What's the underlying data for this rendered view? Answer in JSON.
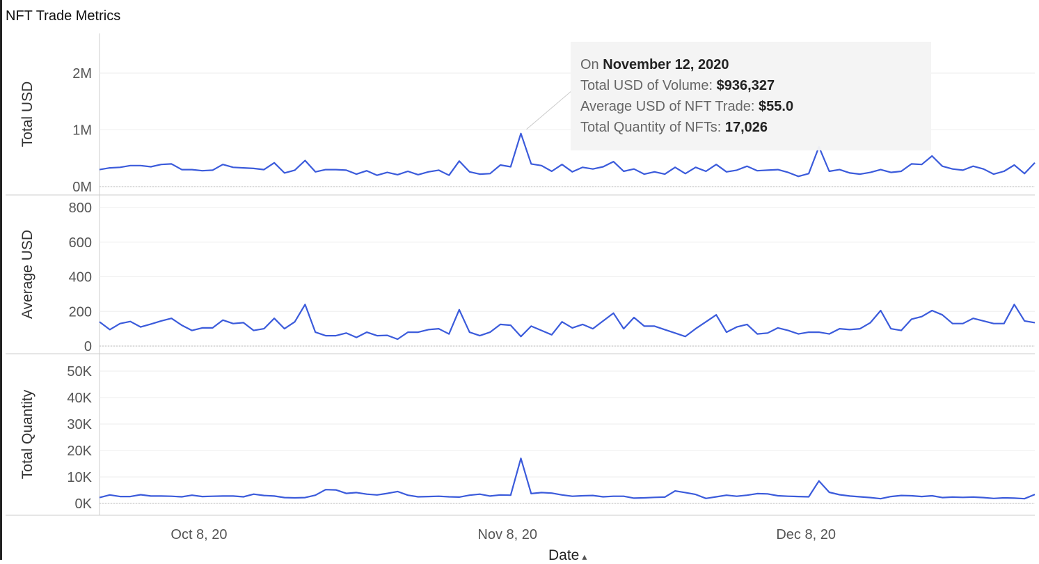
{
  "title": "NFT Trade Metrics",
  "x_axis_title": "Date",
  "x_axis_icon": "sort-icon",
  "colors": {
    "line": "#3b5bdb",
    "grid": "#eeeeee",
    "divider": "#cccccc",
    "tooltip_bg": "#f4f4f4"
  },
  "tooltip": {
    "prefix": "On",
    "date": "November 12, 2020",
    "rows": [
      {
        "label": "Total USD of Volume:",
        "value": "$936,327"
      },
      {
        "label": "Average USD of NFT Trade:",
        "value": "$55.0"
      },
      {
        "label": "Total Quantity of NFTs:",
        "value": "17,026"
      }
    ]
  },
  "chart_data": {
    "type": "line",
    "x": {
      "start": "2020-09-28",
      "end": "2020-12-31",
      "ticks": [
        "Oct 8, 20",
        "Nov 8, 20",
        "Dec 8, 20"
      ],
      "tick_dates": [
        "2020-10-08",
        "2020-11-08",
        "2020-12-08"
      ]
    },
    "grid": true,
    "panels": [
      {
        "name": "Total USD",
        "ylabel": "Total USD",
        "ylim": [
          0,
          2500000
        ],
        "yticks": [
          0,
          1000000,
          2000000
        ],
        "ytick_labels": [
          "0M",
          "1M",
          "2M"
        ],
        "values": [
          300000,
          330000,
          340000,
          370000,
          370000,
          350000,
          390000,
          400000,
          300000,
          300000,
          280000,
          290000,
          390000,
          340000,
          330000,
          320000,
          300000,
          420000,
          240000,
          290000,
          460000,
          260000,
          300000,
          300000,
          290000,
          220000,
          280000,
          200000,
          250000,
          210000,
          270000,
          210000,
          260000,
          290000,
          200000,
          450000,
          260000,
          220000,
          230000,
          380000,
          350000,
          936327,
          400000,
          370000,
          270000,
          390000,
          260000,
          340000,
          310000,
          350000,
          440000,
          270000,
          310000,
          220000,
          260000,
          220000,
          340000,
          230000,
          340000,
          270000,
          390000,
          260000,
          290000,
          360000,
          280000,
          290000,
          300000,
          250000,
          180000,
          230000,
          700000,
          270000,
          300000,
          240000,
          220000,
          250000,
          300000,
          250000,
          270000,
          400000,
          390000,
          540000,
          360000,
          310000,
          290000,
          360000,
          310000,
          220000,
          270000,
          380000,
          230000,
          420000
        ]
      },
      {
        "name": "Average USD",
        "ylabel": "Average USD",
        "ylim": [
          0,
          800
        ],
        "yticks": [
          0,
          200,
          400,
          600,
          800
        ],
        "ytick_labels": [
          "0",
          "200",
          "400",
          "600",
          "800"
        ],
        "values": [
          140,
          95,
          130,
          142,
          110,
          127,
          145,
          160,
          120,
          90,
          105,
          105,
          150,
          130,
          135,
          90,
          100,
          160,
          100,
          140,
          240,
          80,
          60,
          60,
          75,
          50,
          80,
          60,
          62,
          40,
          80,
          80,
          95,
          100,
          70,
          210,
          80,
          60,
          80,
          125,
          120,
          55,
          115,
          90,
          65,
          140,
          105,
          125,
          100,
          145,
          190,
          100,
          165,
          115,
          115,
          95,
          75,
          55,
          100,
          140,
          180,
          80,
          110,
          125,
          70,
          75,
          105,
          90,
          70,
          80,
          80,
          70,
          100,
          95,
          100,
          135,
          205,
          100,
          90,
          155,
          170,
          205,
          180,
          130,
          130,
          160,
          145,
          130,
          130,
          240,
          145,
          135
        ]
      },
      {
        "name": "Total Quantity",
        "ylabel": "Total Quantity",
        "ylim": [
          0,
          55000
        ],
        "yticks": [
          0,
          10000,
          20000,
          30000,
          40000,
          50000
        ],
        "ytick_labels": [
          "0K",
          "10K",
          "20K",
          "30K",
          "40K",
          "50K"
        ],
        "values": [
          2200,
          3200,
          2600,
          2600,
          3300,
          2800,
          2800,
          2700,
          2500,
          3100,
          2600,
          2700,
          2800,
          2800,
          2500,
          3500,
          3000,
          2800,
          2200,
          2100,
          2200,
          3100,
          5200,
          5100,
          3800,
          4100,
          3500,
          3200,
          3800,
          4500,
          3100,
          2500,
          2600,
          2700,
          2500,
          2400,
          3100,
          3500,
          2800,
          3200,
          3100,
          17026,
          3700,
          4100,
          3900,
          3200,
          2700,
          2900,
          3000,
          2500,
          2700,
          2700,
          2000,
          2100,
          2300,
          2400,
          4700,
          4100,
          3400,
          1900,
          2500,
          3100,
          2700,
          3100,
          3700,
          3600,
          2900,
          2700,
          2600,
          2500,
          8500,
          4200,
          3300,
          2800,
          2500,
          2200,
          1800,
          2600,
          3000,
          2900,
          2600,
          2900,
          2200,
          2400,
          2300,
          2400,
          2200,
          1900,
          2100,
          2000,
          1800,
          3400
        ]
      }
    ]
  }
}
